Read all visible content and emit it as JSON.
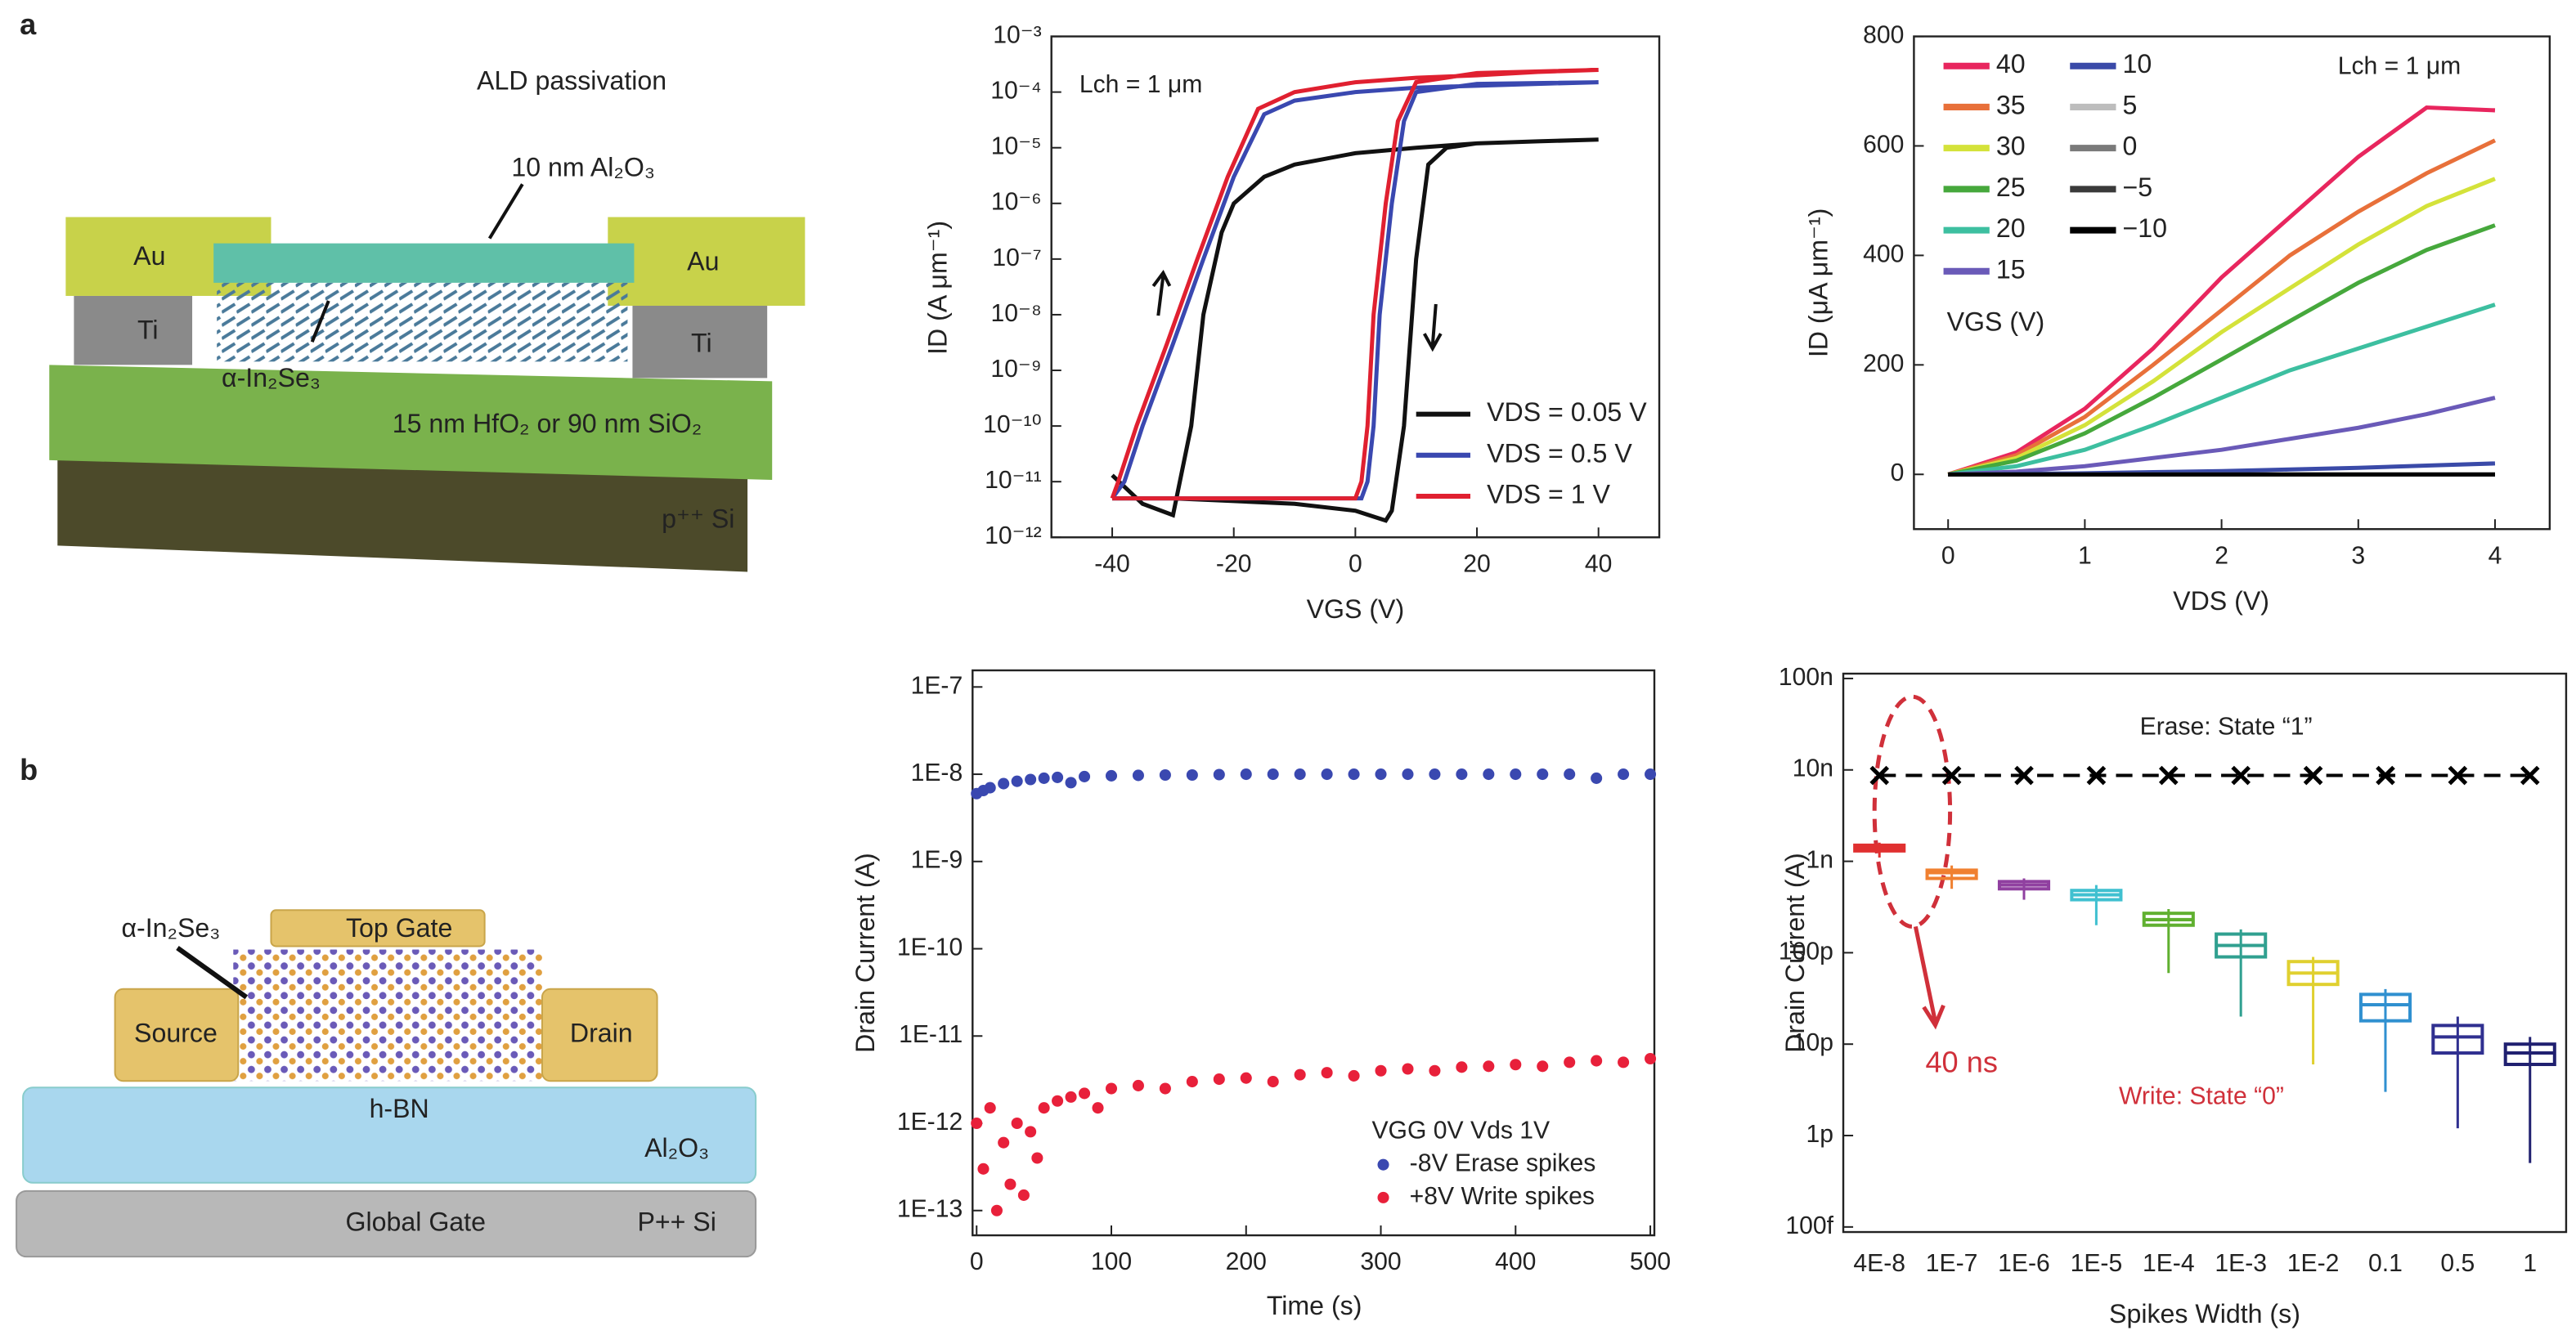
{
  "diagrams": [
    {
      "panel": "a",
      "texts": [
        "ALD passivation",
        "10 nm Al₂O₃",
        "Au",
        "Au",
        "Ti",
        "Ti",
        "α-In₂Se₃",
        "15 nm HfO₂ or 90 nm SiO₂",
        "p⁺⁺ Si"
      ]
    },
    {
      "panel": "b",
      "texts": [
        "α-In₂Se₃",
        "Top Gate",
        "Source",
        "Drain",
        "h-BN",
        "Al₂O₃",
        "Global Gate",
        "P++ Si"
      ]
    }
  ],
  "chart_data": [
    {
      "type": "line",
      "yscale": "log",
      "xlabel": "VGS (V)",
      "ylabel": "ID (A μm⁻¹)",
      "annotations": [
        "Lch = 1 μm"
      ],
      "xlim": [
        -50,
        50
      ],
      "xticks": [
        -40,
        -20,
        0,
        20,
        40
      ],
      "ylim": [
        1e-12,
        0.001
      ],
      "yticks": [
        {
          "value": 0.001,
          "label": "10⁻³"
        },
        {
          "value": 0.0001,
          "label": "10⁻⁴"
        },
        {
          "value": 1e-05,
          "label": "10⁻⁵"
        },
        {
          "value": 1e-06,
          "label": "10⁻⁶"
        },
        {
          "value": 1e-07,
          "label": "10⁻⁷"
        },
        {
          "value": 1e-08,
          "label": "10⁻⁸"
        },
        {
          "value": 1e-09,
          "label": "10⁻⁹"
        },
        {
          "value": 1e-10,
          "label": "10⁻¹⁰"
        },
        {
          "value": 1e-11,
          "label": "10⁻¹¹"
        },
        {
          "value": 1e-12,
          "label": "10⁻¹²"
        }
      ],
      "series": [
        {
          "name": "VDS = 0.05 V",
          "color": "#111111",
          "x": [
            -40,
            -35,
            -30,
            -27,
            -25,
            -22,
            -20,
            -15,
            -10,
            0,
            10,
            20,
            30,
            40,
            30,
            20,
            15,
            12,
            10,
            8,
            6,
            5,
            0,
            -10,
            -20,
            -30,
            -40
          ],
          "values": [
            1.3e-11,
            4e-12,
            2.5e-12,
            1e-10,
            1e-08,
            3e-07,
            1e-06,
            3e-06,
            5e-06,
            8e-06,
            1e-05,
            1.2e-05,
            1.3e-05,
            1.4e-05,
            1.3e-05,
            1.2e-05,
            1e-05,
            5e-06,
            1e-07,
            1e-10,
            3e-12,
            2e-12,
            3e-12,
            4e-12,
            4.5e-12,
            5e-12,
            5e-12
          ]
        },
        {
          "name": "VDS = 0.5 V",
          "color": "#3a48b0",
          "x": [
            -40,
            -38,
            -35,
            -30,
            -25,
            -20,
            -15,
            -10,
            0,
            10,
            20,
            30,
            40,
            20,
            10,
            8,
            6,
            4,
            3,
            2,
            1,
            -10,
            -20,
            -30,
            -40
          ],
          "values": [
            5e-12,
            1e-11,
            1e-10,
            3e-09,
            1e-07,
            3e-06,
            4e-05,
            7e-05,
            0.0001,
            0.00012,
            0.00013,
            0.00014,
            0.00015,
            0.00014,
            0.0001,
            3e-05,
            1e-06,
            1e-08,
            1e-10,
            1e-11,
            5e-12,
            5e-12,
            5e-12,
            5e-12,
            5e-12
          ]
        },
        {
          "name": "VDS = 1 V",
          "color": "#e02030",
          "x": [
            -40,
            -39,
            -36,
            -31,
            -26,
            -21,
            -16,
            -10,
            0,
            10,
            20,
            30,
            40,
            20,
            10,
            7,
            5,
            3,
            2,
            1,
            0,
            -10,
            -20,
            -30,
            -40
          ],
          "values": [
            5e-12,
            1e-11,
            1e-10,
            3e-09,
            1e-07,
            3e-06,
            5e-05,
            0.0001,
            0.00015,
            0.00018,
            0.0002,
            0.00023,
            0.00025,
            0.00022,
            0.00015,
            3e-05,
            1e-06,
            1e-08,
            1e-10,
            1e-11,
            5e-12,
            5e-12,
            5e-12,
            5e-12,
            5e-12
          ]
        }
      ]
    },
    {
      "type": "line",
      "xlabel": "VDS (V)",
      "ylabel": "ID (μA μm⁻¹)",
      "annotations": [
        "Lch = 1 μm"
      ],
      "legend_title": "VGS (V)",
      "xlim": [
        -0.25,
        4.4
      ],
      "xticks": [
        0,
        1,
        2,
        3,
        4
      ],
      "ylim": [
        -100,
        800
      ],
      "yticks": [
        0,
        200,
        400,
        600,
        800
      ],
      "x": [
        0,
        0.5,
        1,
        1.5,
        2,
        2.5,
        3,
        3.5,
        4
      ],
      "series": [
        {
          "name": "40",
          "color": "#e8265e",
          "values": [
            0,
            40,
            120,
            230,
            360,
            470,
            580,
            670,
            665
          ]
        },
        {
          "name": "35",
          "color": "#e8703a",
          "values": [
            0,
            35,
            105,
            200,
            300,
            400,
            480,
            550,
            610
          ]
        },
        {
          "name": "30",
          "color": "#d4e23a",
          "values": [
            0,
            30,
            90,
            170,
            260,
            340,
            420,
            490,
            540
          ]
        },
        {
          "name": "25",
          "color": "#46a83c",
          "values": [
            0,
            25,
            75,
            140,
            210,
            280,
            350,
            410,
            455
          ]
        },
        {
          "name": "20",
          "color": "#3dbfa0",
          "values": [
            0,
            15,
            45,
            90,
            140,
            190,
            230,
            270,
            310
          ]
        },
        {
          "name": "15",
          "color": "#6a5ab8",
          "values": [
            0,
            5,
            15,
            30,
            45,
            65,
            85,
            110,
            140
          ]
        },
        {
          "name": "10",
          "color": "#3a4aa8",
          "values": [
            0,
            1,
            2,
            4,
            6,
            9,
            12,
            16,
            20
          ]
        },
        {
          "name": "5",
          "color": "#bdbdbd",
          "values": [
            0,
            0,
            0,
            0,
            0,
            0,
            0,
            0,
            0
          ]
        },
        {
          "name": "0",
          "color": "#7a7a7a",
          "values": [
            0,
            0,
            0,
            0,
            0,
            0,
            0,
            0,
            0
          ]
        },
        {
          "name": "−5",
          "color": "#3a3a3a",
          "values": [
            0,
            0,
            0,
            0,
            0,
            0,
            0,
            0,
            0
          ]
        },
        {
          "name": "−10",
          "color": "#000000",
          "values": [
            0,
            0,
            0,
            0,
            0,
            0,
            0,
            0,
            0
          ]
        }
      ]
    },
    {
      "type": "scatter",
      "yscale": "log",
      "xlabel": "Time (s)",
      "ylabel": "Drain Current (A)",
      "legend_title": "VGG 0V Vds 1V",
      "xlim": [
        -3,
        503
      ],
      "xticks": [
        0,
        100,
        200,
        300,
        400,
        500
      ],
      "ylim": [
        5.2e-14,
        1.55e-07
      ],
      "yticks": [
        {
          "value": 1e-07,
          "label": "1E-7"
        },
        {
          "value": 1e-08,
          "label": "1E-8"
        },
        {
          "value": 1e-09,
          "label": "1E-9"
        },
        {
          "value": 1e-10,
          "label": "1E-10"
        },
        {
          "value": 1e-11,
          "label": "1E-11"
        },
        {
          "value": 1e-12,
          "label": "1E-12"
        },
        {
          "value": 1e-13,
          "label": "1E-13"
        }
      ],
      "series": [
        {
          "name": "-8V Erase spikes",
          "color": "#3a48b0",
          "x": [
            0,
            5,
            10,
            20,
            30,
            40,
            50,
            60,
            70,
            80,
            100,
            120,
            140,
            160,
            180,
            200,
            220,
            240,
            260,
            280,
            300,
            320,
            340,
            360,
            380,
            400,
            420,
            440,
            460,
            480,
            500
          ],
          "values": [
            6e-09,
            6.5e-09,
            7e-09,
            7.8e-09,
            8.3e-09,
            8.7e-09,
            9e-09,
            9.2e-09,
            8e-09,
            9.4e-09,
            9.6e-09,
            9.7e-09,
            9.8e-09,
            9.8e-09,
            9.9e-09,
            1e-08,
            1e-08,
            1e-08,
            1e-08,
            1e-08,
            1e-08,
            1e-08,
            1e-08,
            1e-08,
            1e-08,
            1e-08,
            1e-08,
            1e-08,
            9e-09,
            1e-08,
            1e-08
          ]
        },
        {
          "name": "+8V Write spikes",
          "color": "#e8203a",
          "x": [
            0,
            5,
            10,
            15,
            20,
            25,
            30,
            35,
            40,
            45,
            50,
            60,
            70,
            80,
            90,
            100,
            120,
            140,
            160,
            180,
            200,
            220,
            240,
            260,
            280,
            300,
            320,
            340,
            360,
            380,
            400,
            420,
            440,
            460,
            480,
            500
          ],
          "values": [
            1e-12,
            3e-13,
            1.5e-12,
            1e-13,
            6e-13,
            2e-13,
            1e-12,
            1.5e-13,
            8e-13,
            4e-13,
            1.5e-12,
            1.8e-12,
            2e-12,
            2.2e-12,
            1.5e-12,
            2.5e-12,
            2.7e-12,
            2.5e-12,
            3e-12,
            3.2e-12,
            3.3e-12,
            3e-12,
            3.6e-12,
            3.8e-12,
            3.5e-12,
            4e-12,
            4.2e-12,
            4e-12,
            4.4e-12,
            4.5e-12,
            4.7e-12,
            4.5e-12,
            5e-12,
            5.2e-12,
            5e-12,
            5.5e-12
          ]
        }
      ]
    },
    {
      "type": "box",
      "yscale": "log",
      "xlabel": "Spikes Width (s)",
      "ylabel": "Drain Current (A)",
      "annotations": [
        "Erase: State “1”",
        "40 ns",
        "Write: State “0”"
      ],
      "categories": [
        "4E-8",
        "1E-7",
        "1E-6",
        "1E-5",
        "1E-4",
        "1E-3",
        "1E-2",
        "0.1",
        "0.5",
        "1"
      ],
      "ylim": [
        8.8e-14,
        1.13e-07
      ],
      "yticks": [
        {
          "value": 1e-07,
          "label": "100n"
        },
        {
          "value": 1e-08,
          "label": "10n"
        },
        {
          "value": 1e-09,
          "label": "1n"
        },
        {
          "value": 1e-10,
          "label": "100p"
        },
        {
          "value": 1e-11,
          "label": "10p"
        },
        {
          "value": 1e-12,
          "label": "1p"
        },
        {
          "value": 1e-13,
          "label": "100f"
        }
      ],
      "erase": {
        "color": "#000000",
        "values": [
          8.7e-09,
          8.7e-09,
          8.7e-09,
          8.7e-09,
          8.7e-09,
          8.7e-09,
          8.7e-09,
          8.7e-09,
          8.7e-09,
          8.7e-09
        ]
      },
      "boxes": [
        {
          "color": "#e03030",
          "min": 1.1e-09,
          "q1": 1.3e-09,
          "median": 1.4e-09,
          "q3": 1.5e-09,
          "max": 1.6e-09
        },
        {
          "color": "#f08030",
          "min": 5e-10,
          "q1": 6.5e-10,
          "median": 7.5e-10,
          "q3": 8e-10,
          "max": 9e-10
        },
        {
          "color": "#9040a0",
          "min": 3.8e-10,
          "q1": 5e-10,
          "median": 5.5e-10,
          "q3": 6e-10,
          "max": 6.5e-10
        },
        {
          "color": "#40c0d0",
          "min": 2e-10,
          "q1": 3.8e-10,
          "median": 4.3e-10,
          "q3": 4.8e-10,
          "max": 5.5e-10
        },
        {
          "color": "#60b030",
          "min": 6e-11,
          "q1": 2e-10,
          "median": 2.3e-10,
          "q3": 2.7e-10,
          "max": 3e-10
        },
        {
          "color": "#30a090",
          "min": 2e-11,
          "q1": 9e-11,
          "median": 1.2e-10,
          "q3": 1.6e-10,
          "max": 1.8e-10
        },
        {
          "color": "#e0d030",
          "min": 6e-12,
          "q1": 4.5e-11,
          "median": 6e-11,
          "q3": 8e-11,
          "max": 9e-11
        },
        {
          "color": "#3090d0",
          "min": 3e-12,
          "q1": 1.8e-11,
          "median": 2.7e-11,
          "q3": 3.5e-11,
          "max": 4e-11
        },
        {
          "color": "#303090",
          "min": 1.2e-12,
          "q1": 8e-12,
          "median": 1.2e-11,
          "q3": 1.6e-11,
          "max": 2e-11
        },
        {
          "color": "#202070",
          "min": 5e-13,
          "q1": 6e-12,
          "median": 8e-12,
          "q3": 1e-11,
          "max": 1.2e-11
        }
      ]
    }
  ]
}
